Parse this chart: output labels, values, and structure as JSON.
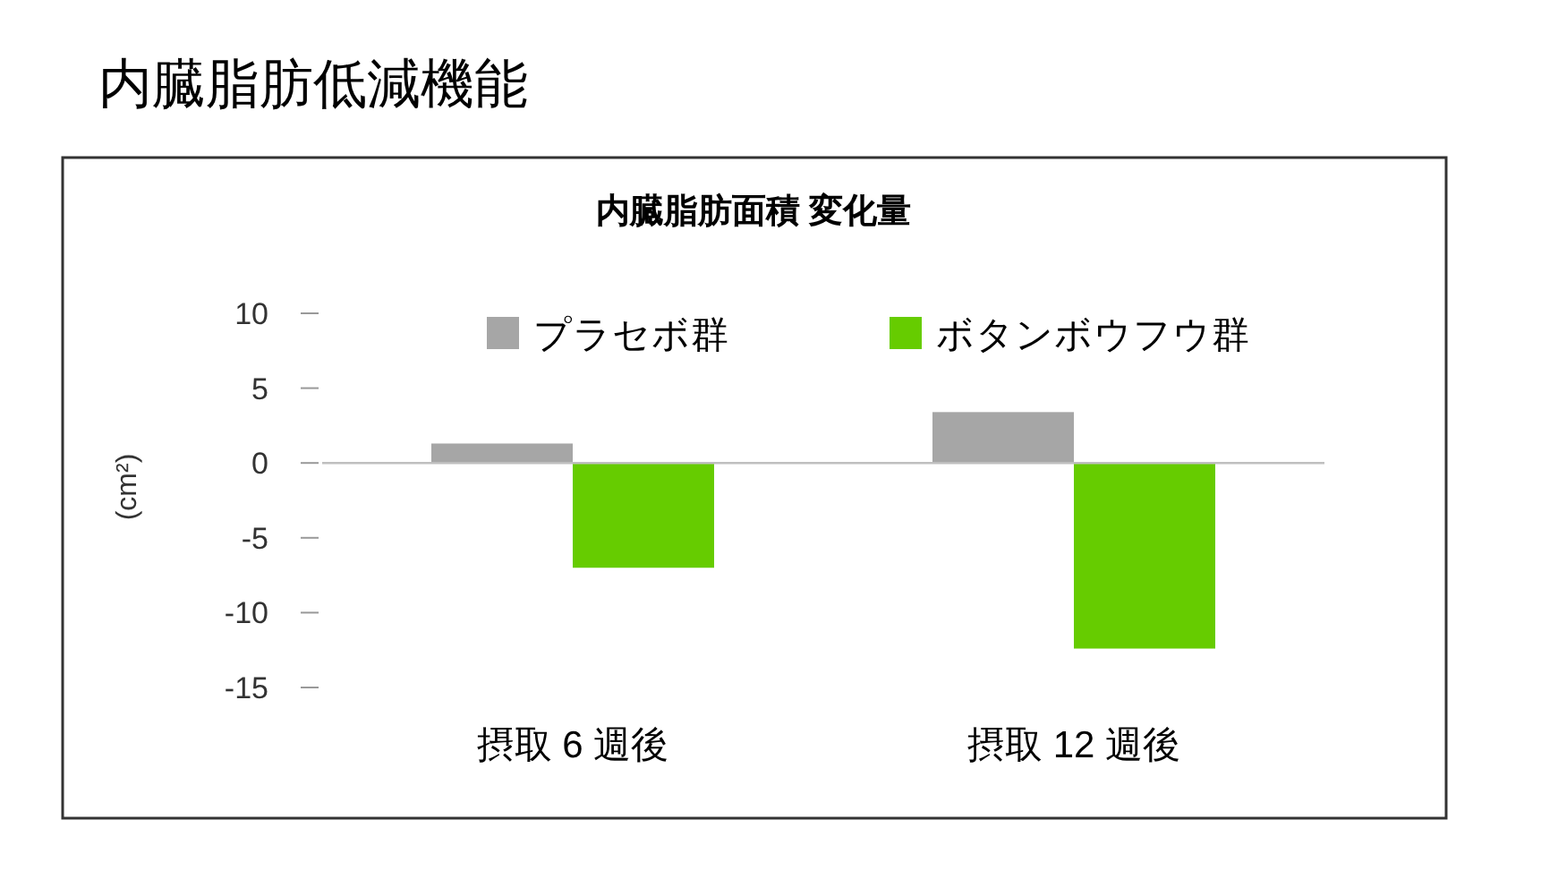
{
  "chart_data": {
    "type": "bar",
    "title": "内臓脂肪低減機能",
    "subtitle": "内臓脂肪面積 変化量",
    "ylabel": "(cm²)",
    "categories": [
      "摂取 6 週後",
      "摂取 12 週後"
    ],
    "series": [
      {
        "name": "プラセボ群",
        "color": "#a6a6a6",
        "values": [
          1.3,
          3.4
        ]
      },
      {
        "name": "ボタンボウフウ群",
        "color": "#66cc00",
        "values": [
          -7.0,
          -12.4
        ]
      }
    ],
    "ylim": [
      -15,
      10
    ],
    "yticks": [
      -15,
      -10,
      -5,
      0,
      5,
      10
    ],
    "grid": false,
    "legend": "top",
    "ref_lines": [
      {
        "axis": "y",
        "value": 0,
        "color": "#bfbfbf"
      }
    ]
  }
}
